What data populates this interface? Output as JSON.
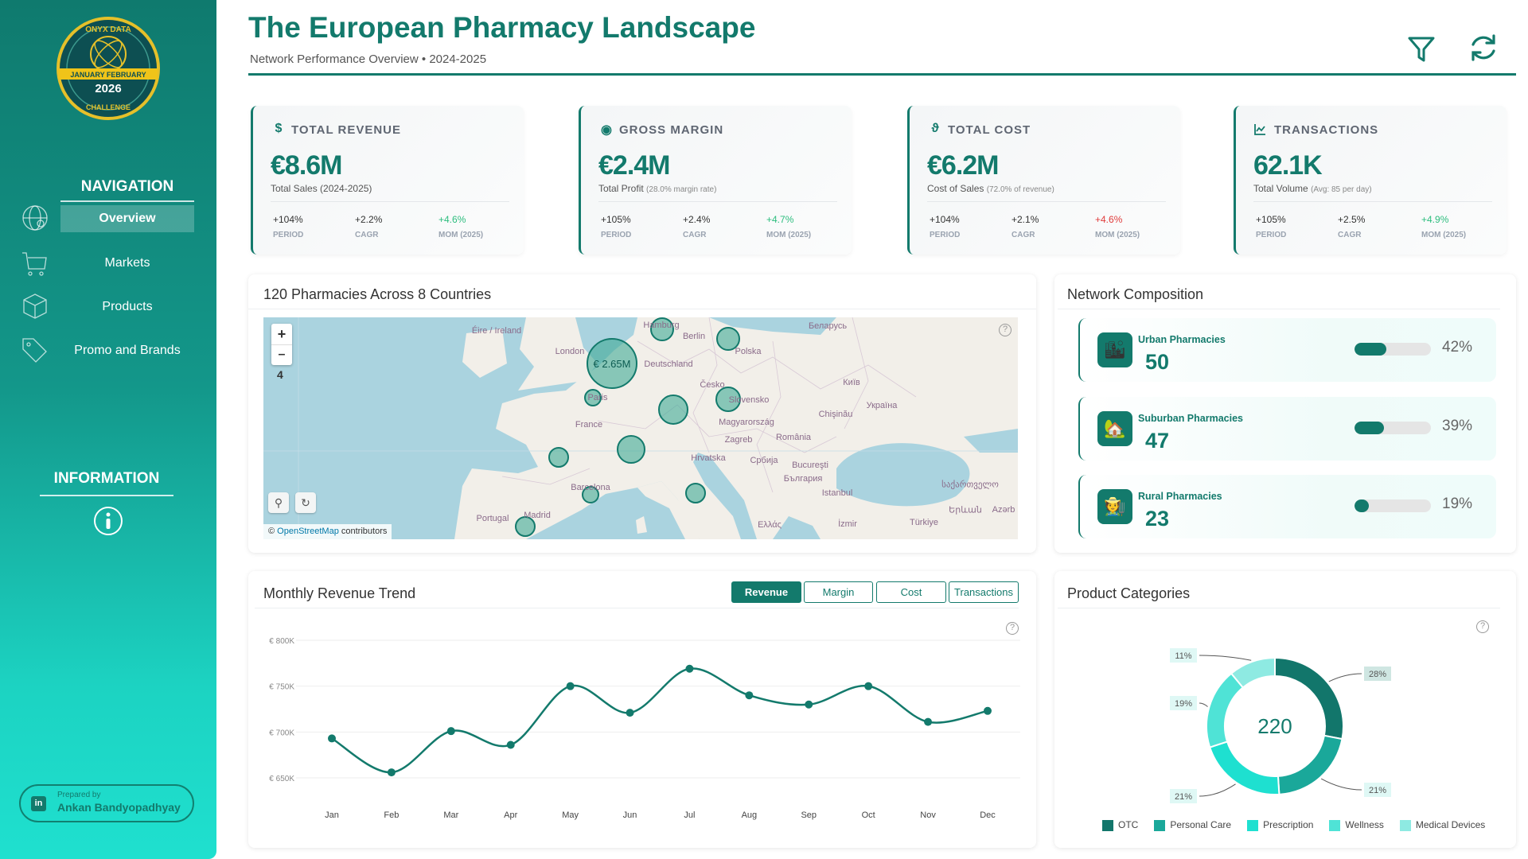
{
  "logo": {
    "text_top": "ONYX DATA",
    "band": "JANUARY FEBRUARY",
    "year": "2026",
    "text_bottom": "CHALLENGE"
  },
  "sidebar": {
    "nav_heading": "NAVIGATION",
    "items": [
      {
        "label": "Overview",
        "icon": "globe-icon",
        "active": true
      },
      {
        "label": "Markets",
        "icon": "cart-icon"
      },
      {
        "label": "Products",
        "icon": "box-icon"
      },
      {
        "label": "Promo and Brands",
        "icon": "tag-icon"
      }
    ],
    "info_heading": "INFORMATION",
    "prepared_by_label": "Prepared by",
    "author": "Ankan Bandyopadhyay"
  },
  "header": {
    "title": "The European Pharmacy Landscape",
    "subtitle": "Network Performance Overview • 2024-2025"
  },
  "kpis": [
    {
      "label": "TOTAL REVENUE",
      "icon": "dollar-icon",
      "value": "€8.6M",
      "sub": "Total Sales (2024-2025)",
      "sub_note": "",
      "period": "+104%",
      "cagr": "+2.2%",
      "mom": "+4.6%",
      "mom_color": "#2dbd7e"
    },
    {
      "label": "GROSS MARGIN",
      "icon": "target-icon",
      "value": "€2.4M",
      "sub": "Total Profit",
      "sub_note": "(28.0% margin rate)",
      "period": "+105%",
      "cagr": "+2.4%",
      "mom": "+4.7%",
      "mom_color": "#2dbd7e"
    },
    {
      "label": "TOTAL COST",
      "icon": "cost-icon",
      "value": "€6.2M",
      "sub": "Cost of Sales",
      "sub_note": "(72.0% of revenue)",
      "period": "+104%",
      "cagr": "+2.1%",
      "mom": "+4.6%",
      "mom_color": "#e03b3b"
    },
    {
      "label": "TRANSACTIONS",
      "icon": "chart-line-icon",
      "value": "62.1K",
      "sub": "Total Volume",
      "sub_note": "(Avg: 85 per day)",
      "period": "+105%",
      "cagr": "+2.5%",
      "mom": "+4.9%",
      "mom_color": "#2dbd7e"
    }
  ],
  "kpi_labels": {
    "period": "PERIOD",
    "cagr": "CAGR",
    "mom": "MOM (2025)"
  },
  "map": {
    "title": "120 Pharmacies Across 8 Countries",
    "zoom_level": "4",
    "zoom_in": "+",
    "zoom_out": "–",
    "attribution_link": "OpenStreetMap",
    "attribution_prefix": "©",
    "attribution_suffix": "contributors",
    "largest_bubble_label": "€ 2.65M",
    "labels": [
      "Éire / Ireland",
      "London",
      "Berlin",
      "Deutschland",
      "Polska",
      "Беларусь",
      "Česko",
      "France",
      "Magyarország",
      "Київ",
      "Україна",
      "Chişinău",
      "Zagreb",
      "România",
      "Hrvatska",
      "Србија",
      "Bucureşti",
      "България",
      "Barcelona",
      "Istanbul",
      "Portugal",
      "Madrid",
      "İzmir",
      "Türkiye",
      "Ελλάς",
      "საქართველო",
      "Երևան",
      "Azərb",
      "Paris",
      "Hamburg",
      "Slovensko"
    ]
  },
  "network": {
    "title": "Network Composition",
    "rows": [
      {
        "label": "Urban Pharmacies",
        "count": "50",
        "pct_label": "42%",
        "pct": 42,
        "icon": "city-icon",
        "emoji": "🏙"
      },
      {
        "label": "Suburban Pharmacies",
        "count": "47",
        "pct_label": "39%",
        "pct": 39,
        "icon": "house-icon",
        "emoji": "🏡"
      },
      {
        "label": "Rural Pharmacies",
        "count": "23",
        "pct_label": "19%",
        "pct": 19,
        "icon": "farmer-icon",
        "emoji": "🧑‍🌾"
      }
    ]
  },
  "trend": {
    "title": "Monthly Revenue Trend",
    "buttons": [
      "Revenue",
      "Margin",
      "Cost",
      "Transactions"
    ],
    "active_button": "Revenue"
  },
  "categories": {
    "title": "Product Categories"
  },
  "chart_data": [
    {
      "type": "line",
      "title": "Monthly Revenue Trend",
      "categories": [
        "Jan",
        "Feb",
        "Mar",
        "Apr",
        "May",
        "Jun",
        "Jul",
        "Aug",
        "Sep",
        "Oct",
        "Nov",
        "Dec"
      ],
      "values": [
        693,
        656,
        701,
        686,
        750,
        721,
        769,
        740,
        730,
        750,
        711,
        723
      ],
      "unit": "€K",
      "yticks": [
        650,
        700,
        750,
        800
      ],
      "ytick_labels": [
        "€ 650K",
        "€ 700K",
        "€ 750K",
        "€ 800K"
      ],
      "ylim": [
        630,
        800
      ],
      "color": "#137a6c"
    },
    {
      "type": "pie",
      "title": "Product Categories",
      "center_label": "220",
      "labels": [
        "OTC",
        "Personal Care",
        "Prescription",
        "Wellness",
        "Medical Devices"
      ],
      "values": [
        28,
        21,
        21,
        19,
        11
      ],
      "value_labels": [
        "28%",
        "21%",
        "21%",
        "19%",
        "11%"
      ],
      "colors": [
        "#12766b",
        "#1aa89a",
        "#1ee0d0",
        "#4fe3d6",
        "#8eeae2"
      ],
      "legend": "bottom"
    }
  ]
}
